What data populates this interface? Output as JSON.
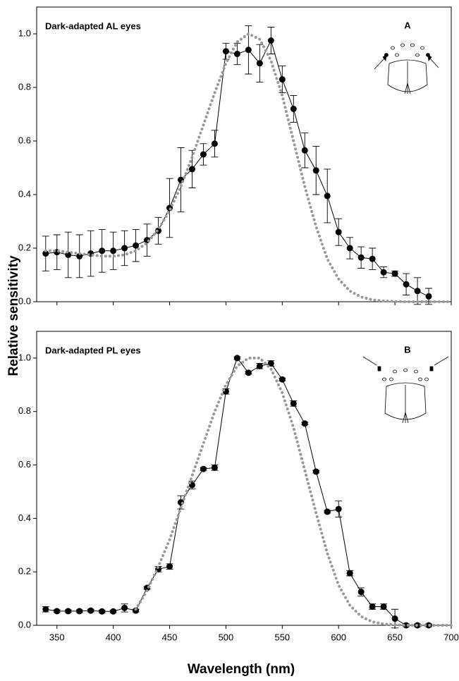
{
  "chart_data": [
    {
      "type": "line",
      "title": "Dark-adapted AL eyes",
      "panel_label": "A",
      "xlim": [
        332,
        700
      ],
      "ylim": [
        0,
        1.1
      ],
      "xticks": [
        350,
        400,
        450,
        500,
        550,
        600,
        650,
        700
      ],
      "xtick_labels_shown": false,
      "yticks": [
        {
          "value": 0,
          "label": "0.0"
        },
        {
          "value": 0.2,
          "label": "0.2"
        },
        {
          "value": 0.4,
          "label": "0.4"
        },
        {
          "value": 0.6,
          "label": "0.6"
        },
        {
          "value": 0.8,
          "label": "0.8"
        },
        {
          "value": 1,
          "label": "1.0"
        }
      ],
      "ylabel": "Relative sensitivity",
      "series": [
        {
          "color": "#000000",
          "style": "solid",
          "x": [
            340,
            350,
            360,
            370,
            380,
            390,
            400,
            410,
            420,
            430,
            440,
            450,
            460,
            470,
            480,
            490,
            500,
            510,
            520,
            530,
            540,
            550,
            560,
            570,
            580,
            590,
            600,
            610,
            620,
            630,
            640,
            650,
            660,
            670,
            680
          ],
          "values": [
            0.18,
            0.185,
            0.175,
            0.17,
            0.18,
            0.19,
            0.19,
            0.2,
            0.21,
            0.23,
            0.265,
            0.35,
            0.455,
            0.495,
            0.55,
            0.59,
            0.935,
            0.925,
            0.94,
            0.89,
            0.975,
            0.83,
            0.72,
            0.565,
            0.49,
            0.395,
            0.26,
            0.2,
            0.165,
            0.16,
            0.11,
            0.105,
            0.065,
            0.04,
            0.02
          ],
          "errors": [
            0.065,
            0.065,
            0.085,
            0.08,
            0.085,
            0.08,
            0.07,
            0.065,
            0.06,
            0.06,
            0.05,
            0.11,
            0.12,
            0.07,
            0.04,
            0.05,
            0.03,
            0.04,
            0.09,
            0.07,
            0.05,
            0.05,
            0.05,
            0.065,
            0.09,
            0.1,
            0.05,
            0.04,
            0.04,
            0.04,
            0.02,
            0.01,
            0.04,
            0.05,
            0.03
          ]
        },
        {
          "color": "#999999",
          "style": "dotted",
          "x": [
            340,
            350,
            360,
            370,
            380,
            390,
            400,
            410,
            420,
            430,
            440,
            450,
            460,
            470,
            480,
            490,
            500,
            510,
            520,
            530,
            540,
            550,
            560,
            570,
            580,
            590,
            600,
            610,
            620,
            630,
            640,
            650,
            660,
            670,
            680,
            690,
            700
          ],
          "values": [
            0.19,
            0.19,
            0.185,
            0.18,
            0.175,
            0.17,
            0.17,
            0.175,
            0.19,
            0.22,
            0.27,
            0.34,
            0.43,
            0.54,
            0.66,
            0.78,
            0.89,
            0.97,
            1.0,
            0.98,
            0.9,
            0.77,
            0.6,
            0.43,
            0.28,
            0.16,
            0.085,
            0.04,
            0.018,
            0.007,
            0.003,
            0.001,
            0,
            0,
            0,
            0,
            0
          ]
        }
      ]
    },
    {
      "type": "line",
      "title": "Dark-adapted PL eyes",
      "panel_label": "B",
      "xlim": [
        332,
        700
      ],
      "ylim": [
        0,
        1.1
      ],
      "xticks": [
        350,
        400,
        450,
        500,
        550,
        600,
        650,
        700
      ],
      "xtick_labels_shown": true,
      "yticks": [
        {
          "value": 0,
          "label": "0.0"
        },
        {
          "value": 0.2,
          "label": "0.2"
        },
        {
          "value": 0.4,
          "label": "0.4"
        },
        {
          "value": 0.6,
          "label": "0.6"
        },
        {
          "value": 0.8,
          "label": "0.8"
        },
        {
          "value": 1,
          "label": "1.0"
        }
      ],
      "xlabel": "Wavelength (nm)",
      "series": [
        {
          "color": "#000000",
          "style": "solid",
          "x": [
            340,
            350,
            360,
            370,
            380,
            390,
            400,
            410,
            420,
            430,
            440,
            450,
            460,
            470,
            480,
            490,
            500,
            510,
            520,
            530,
            540,
            550,
            560,
            570,
            580,
            590,
            600,
            610,
            620,
            630,
            640,
            650,
            660,
            670,
            680
          ],
          "values": [
            0.06,
            0.053,
            0.053,
            0.053,
            0.055,
            0.052,
            0.052,
            0.065,
            0.055,
            0.14,
            0.21,
            0.22,
            0.46,
            0.525,
            0.585,
            0.59,
            0.875,
            1.0,
            0.945,
            0.97,
            0.98,
            0.92,
            0.83,
            0.755,
            0.575,
            0.425,
            0.435,
            0.195,
            0.125,
            0.07,
            0.07,
            0.025,
            0,
            0,
            0
          ],
          "errors": [
            0.01,
            0.005,
            0.005,
            0.005,
            0.005,
            0.005,
            0.005,
            0.015,
            0.005,
            0.005,
            0.01,
            0.01,
            0.025,
            0.015,
            0.005,
            0.01,
            0.01,
            0.005,
            0.005,
            0.01,
            0.01,
            0.005,
            0.01,
            0.005,
            0.005,
            0.005,
            0.03,
            0.01,
            0.015,
            0.01,
            0.01,
            0.035,
            0.005,
            0.005,
            0.005
          ]
        },
        {
          "color": "#999999",
          "style": "dotted",
          "x": [
            420,
            430,
            440,
            450,
            460,
            470,
            480,
            490,
            500,
            510,
            520,
            530,
            540,
            550,
            560,
            570,
            580,
            590,
            600,
            610,
            620,
            630,
            640,
            650,
            660,
            670,
            680,
            690,
            700
          ],
          "values": [
            0.06,
            0.13,
            0.22,
            0.32,
            0.44,
            0.56,
            0.68,
            0.8,
            0.9,
            0.97,
            1.0,
            1.0,
            0.96,
            0.87,
            0.74,
            0.58,
            0.42,
            0.27,
            0.15,
            0.075,
            0.033,
            0.013,
            0.005,
            0.002,
            0,
            0,
            0,
            0,
            0
          ]
        }
      ]
    }
  ]
}
